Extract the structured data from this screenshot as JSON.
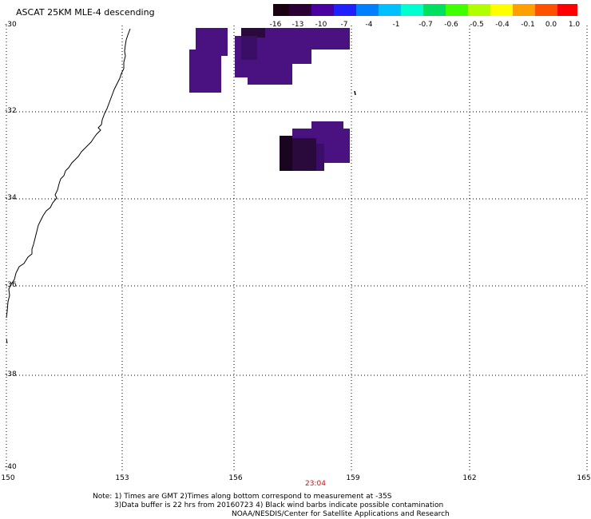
{
  "title": "ASCAT 25KM MLE-4 descending",
  "colorbar": {
    "labels": [
      "-16",
      "-13",
      "-10",
      "-7",
      "-4",
      "-1",
      "-0.7",
      "-0.6",
      "-0.5",
      "-0.4",
      "-0.1",
      "0.0",
      "1.0"
    ],
    "colors": [
      "#1a0010",
      "#2a0035",
      "#4a00a0",
      "#2020ff",
      "#0080ff",
      "#00c0ff",
      "#00ffd0",
      "#00e060",
      "#40ff00",
      "#b0ff00",
      "#ffff00",
      "#ffa000",
      "#ff5000",
      "#ff0000"
    ]
  },
  "map": {
    "lon_labels": [
      "150",
      "153",
      "156",
      "159",
      "162",
      "165"
    ],
    "lat_labels": [
      "-30",
      "-32",
      "-34",
      "-36",
      "-38",
      "-40"
    ],
    "pass_time": "23:04",
    "cell_colors": {
      "main": "#4a1180",
      "dark": "#2a0a3c",
      "darker": "#1a0520"
    }
  },
  "notes": {
    "line1": "Note: 1) Times are GMT 2)Times along bottom correspond to measurement at -35S",
    "line2": "3)Data buffer is 22 hrs from 20160723 4) Black wind barbs indicate possible contamination",
    "line3": "NOAA/NESDIS/Center for Satellite Applications and Research"
  }
}
